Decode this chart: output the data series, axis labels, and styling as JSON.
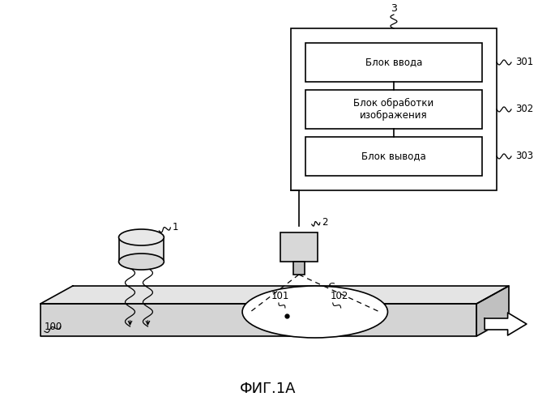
{
  "bg_color": "#ffffff",
  "title": "ФИГ.1А",
  "title_fontsize": 13,
  "box3_label": "3",
  "sub_labels": [
    "Блок ввода",
    "Блок обработки\nизображения",
    "Блок вывода"
  ],
  "sub_tags": [
    "301",
    "302",
    "303"
  ],
  "label1": "1",
  "label2": "2",
  "label100": "100",
  "label101": "101",
  "label102": "102",
  "labelS": "S"
}
